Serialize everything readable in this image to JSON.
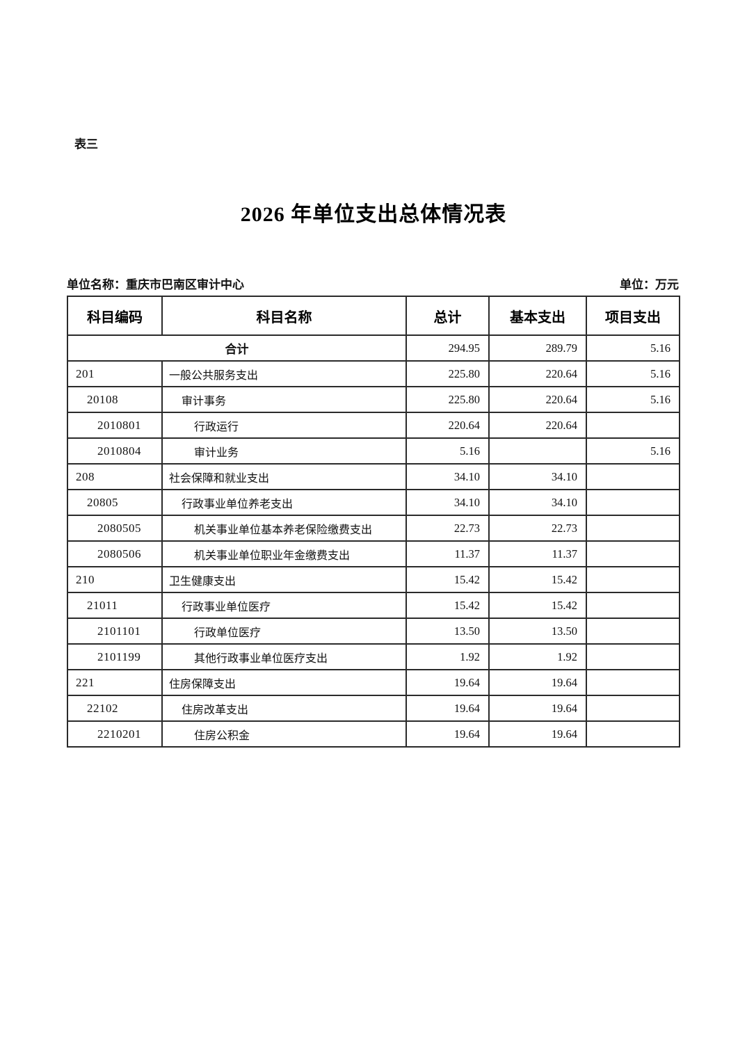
{
  "page": {
    "corner_label": "表三",
    "title": "2026 年单位支出总体情况表",
    "unit_name": "单位名称：重庆市巴南区审计中心",
    "unit_of_measure": "单位：万元"
  },
  "table": {
    "headers": [
      "科目编码",
      "科目名称",
      "总计",
      "基本支出",
      "项目支出"
    ],
    "rows": [
      {
        "code": "",
        "name": "合计",
        "total": "294.95",
        "basic": "289.79",
        "project": "5.16",
        "level": 0,
        "merged": true
      },
      {
        "code": "201",
        "name": "一般公共服务支出",
        "total": "225.80",
        "basic": "220.64",
        "project": "5.16",
        "level": 1
      },
      {
        "code": "20108",
        "name": "审计事务",
        "total": "225.80",
        "basic": "220.64",
        "project": "5.16",
        "level": 2
      },
      {
        "code": "2010801",
        "name": "行政运行",
        "total": "220.64",
        "basic": "220.64",
        "project": "",
        "level": 3
      },
      {
        "code": "2010804",
        "name": "审计业务",
        "total": "5.16",
        "basic": "",
        "project": "5.16",
        "level": 3
      },
      {
        "code": "208",
        "name": "社会保障和就业支出",
        "total": "34.10",
        "basic": "34.10",
        "project": "",
        "level": 1
      },
      {
        "code": "20805",
        "name": "行政事业单位养老支出",
        "total": "34.10",
        "basic": "34.10",
        "project": "",
        "level": 2
      },
      {
        "code": "2080505",
        "name": "机关事业单位基本养老保险缴费支出",
        "total": "22.73",
        "basic": "22.73",
        "project": "",
        "level": 3
      },
      {
        "code": "2080506",
        "name": "机关事业单位职业年金缴费支出",
        "total": "11.37",
        "basic": "11.37",
        "project": "",
        "level": 3
      },
      {
        "code": "210",
        "name": "卫生健康支出",
        "total": "15.42",
        "basic": "15.42",
        "project": "",
        "level": 1
      },
      {
        "code": "21011",
        "name": "行政事业单位医疗",
        "total": "15.42",
        "basic": "15.42",
        "project": "",
        "level": 2
      },
      {
        "code": "2101101",
        "name": "行政单位医疗",
        "total": "13.50",
        "basic": "13.50",
        "project": "",
        "level": 3
      },
      {
        "code": "2101199",
        "name": "其他行政事业单位医疗支出",
        "total": "1.92",
        "basic": "1.92",
        "project": "",
        "level": 3
      },
      {
        "code": "221",
        "name": "住房保障支出",
        "total": "19.64",
        "basic": "19.64",
        "project": "",
        "level": 1
      },
      {
        "code": "22102",
        "name": "住房改革支出",
        "total": "19.64",
        "basic": "19.64",
        "project": "",
        "level": 2
      },
      {
        "code": "2210201",
        "name": "住房公积金",
        "total": "19.64",
        "basic": "19.64",
        "project": "",
        "level": 3
      }
    ]
  }
}
